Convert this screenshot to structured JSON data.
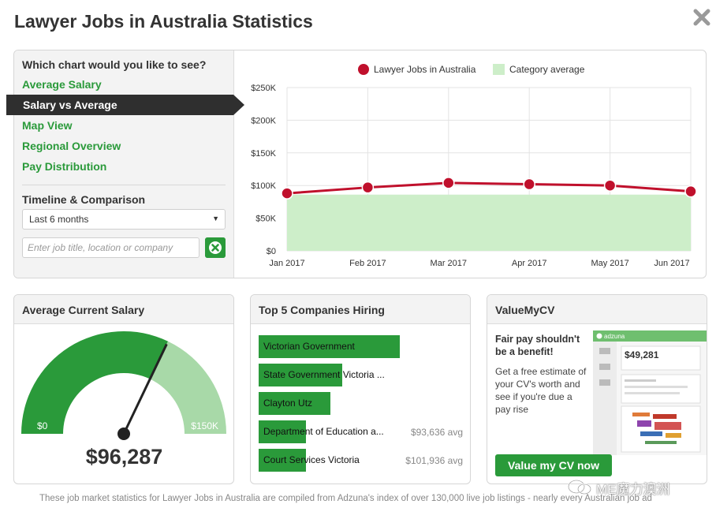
{
  "page": {
    "title": "Lawyer Jobs in Australia Statistics",
    "close_icon": "close-x-icon"
  },
  "sidebar": {
    "question": "Which chart would you like to see?",
    "items": [
      {
        "label": "Average Salary"
      },
      {
        "label": "Salary vs Average",
        "active": true
      },
      {
        "label": "Map View"
      },
      {
        "label": "Regional Overview"
      },
      {
        "label": "Pay Distribution"
      }
    ],
    "timeline_heading": "Timeline & Comparison",
    "timeline_select": "Last 6 months",
    "search_placeholder": "Enter job title, location or company"
  },
  "chart_data": {
    "type": "line",
    "title": "",
    "legend_position": "top",
    "categories": [
      "Jan 2017",
      "Feb 2017",
      "Mar 2017",
      "Apr 2017",
      "May 2017",
      "Jun 2017"
    ],
    "series": [
      {
        "name": "Lawyer Jobs in Australia",
        "type": "line",
        "color": "#c0102c",
        "values": [
          88000,
          97000,
          104000,
          102000,
          100000,
          91000
        ]
      },
      {
        "name": "Category average",
        "type": "area",
        "color": "#cdeec9",
        "values": [
          86000,
          86000,
          86000,
          86000,
          86000,
          86000
        ]
      }
    ],
    "y_ticks": [
      "$0",
      "$50K",
      "$100K",
      "$150K",
      "$200K",
      "$250K"
    ],
    "ylim": [
      0,
      250000
    ],
    "xlabel": "",
    "ylabel": "",
    "grid": true
  },
  "average_salary": {
    "heading": "Average Current Salary",
    "min_label": "$0",
    "max_label": "$150K",
    "value": "$96,287",
    "value_number": 96287,
    "max_number": 150000,
    "fill_color": "#2a9a3a",
    "rest_color": "#a8d9a8"
  },
  "top_companies": {
    "heading": "Top 5 Companies Hiring",
    "rows": [
      {
        "name": "Victorian Government",
        "avg": "",
        "fill": 0.69
      },
      {
        "name": "State Government Victoria ...",
        "avg": "",
        "fill": 0.41
      },
      {
        "name": "Clayton Utz",
        "avg": "",
        "fill": 0.35
      },
      {
        "name": "Department of Education a...",
        "avg": "$93,636 avg",
        "fill": 0.23
      },
      {
        "name": "Court Services Victoria",
        "avg": "$101,936 avg",
        "fill": 0.23
      }
    ]
  },
  "value_my_cv": {
    "heading": "ValueMyCV",
    "title_line1": "Fair pay shouldn't",
    "title_line2": "be a benefit!",
    "text": "Get a free estimate of your CV's worth and see if you're due a pay rise",
    "button": "Value my CV now",
    "thumb_brand": "adzuna",
    "thumb_amount": "$49,281"
  },
  "footer": {
    "text": "These job market statistics for Lawyer Jobs in Australia are compiled from Adzuna's index of over 130,000 live job listings - nearly every Australian job ad"
  },
  "watermark": {
    "text": "ME魔力澳洲"
  }
}
